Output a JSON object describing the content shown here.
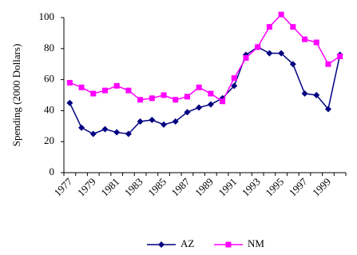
{
  "chart_data": {
    "type": "line",
    "y_label": "Spending (2000 Dollars)",
    "categories": [
      "1977",
      null,
      "1979",
      null,
      "1981",
      null,
      "1983",
      null,
      "1985",
      null,
      "1987",
      null,
      "1989",
      null,
      "1991",
      null,
      "1993",
      null,
      "1995",
      null,
      "1997",
      null,
      "1999",
      null
    ],
    "series": [
      {
        "name": "AZ",
        "color": "#000080",
        "marker": "diamond",
        "values": [
          45,
          29,
          25,
          28,
          26,
          25,
          33,
          34,
          31,
          33,
          39,
          42,
          44,
          48,
          56,
          76,
          81,
          77,
          77,
          70,
          51,
          50,
          41,
          76
        ]
      },
      {
        "name": "NM",
        "color": "#ff00ff",
        "marker": "square",
        "values": [
          58,
          55,
          51,
          53,
          56,
          53,
          47,
          48,
          50,
          47,
          49,
          55,
          51,
          46,
          61,
          74,
          81,
          94,
          102,
          94,
          86,
          84,
          70,
          75
        ]
      }
    ],
    "ylim": [
      0,
      100
    ],
    "yticks": [
      0,
      20,
      40,
      60,
      80,
      100
    ],
    "grid": false,
    "legend": "bottom"
  }
}
